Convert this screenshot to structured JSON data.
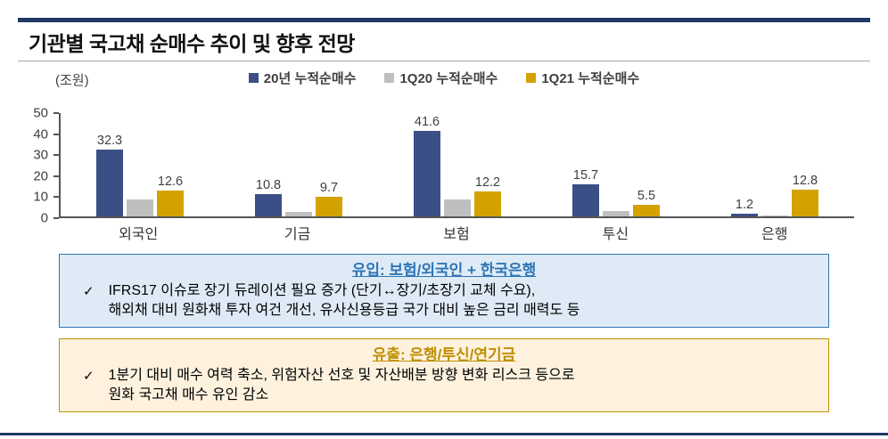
{
  "page": {
    "title": "기관별 국고채 순매수 추이 및 향후 전망"
  },
  "chart_data": {
    "type": "bar",
    "title": "",
    "unit_label": "(조원)",
    "categories": [
      "외국인",
      "기금",
      "보험",
      "투신",
      "은행"
    ],
    "series": [
      {
        "name": "20년 누적순매수",
        "color": "#3B4F87",
        "values": [
          32.3,
          10.8,
          41.6,
          15.7,
          1.2
        ],
        "show_labels": true
      },
      {
        "name": "1Q20 누적순매수",
        "color": "#BFBFBF",
        "values": [
          8.0,
          2.0,
          8.0,
          2.5,
          0.3
        ],
        "show_labels": false
      },
      {
        "name": "1Q21 누적순매수",
        "color": "#D4A200",
        "values": [
          12.6,
          9.7,
          12.2,
          5.5,
          12.8
        ],
        "show_labels": true
      }
    ],
    "ylim": [
      0,
      50
    ],
    "yticks": [
      0,
      10,
      20,
      30,
      40,
      50
    ],
    "grid": false,
    "legend_position": "top"
  },
  "inflow_box": {
    "title": "유입: 보험/외국인 + 한국은행",
    "bullet_icon": "✓",
    "line1": "IFRS17 이슈로 장기 듀레이션 필요 증가 (단기↔장기/초장기 교체 수요),",
    "line2": "해외채 대비 원화채 투자 여건 개선, 유사신용등급 국가 대비 높은 금리 매력도 등"
  },
  "outflow_box": {
    "title": "유출: 은행/투신/연기금",
    "bullet_icon": "✓",
    "line1": "1분기 대비 매수 여력 축소, 위험자산 선호 및 자산배분 방향 변화 리스크 등으로",
    "line2": "원화 국고채 매수 유인 감소"
  },
  "colors": {
    "navy_rule": "#1F3864",
    "axis": "#555555",
    "series_blue": "#3B4F87",
    "series_gray": "#BFBFBF",
    "series_gold": "#D4A200",
    "inflow_border": "#2E75B6",
    "inflow_bg": "#DEEBF7",
    "inflow_title": "#2E75B6",
    "outflow_border": "#BF9000",
    "outflow_bg": "#FEF2DE",
    "outflow_title": "#BF8F00"
  }
}
